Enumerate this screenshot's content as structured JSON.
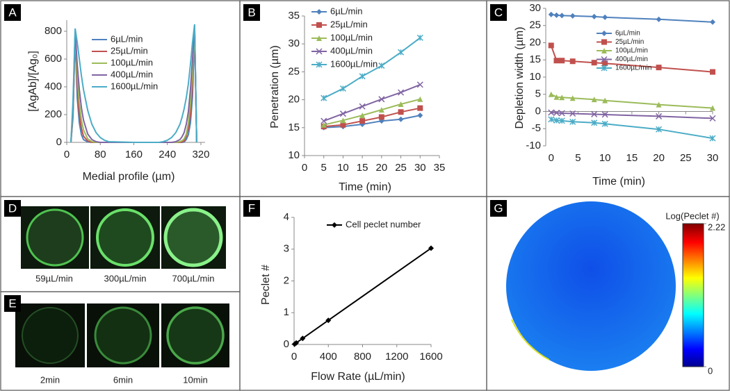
{
  "chart_data": [
    {
      "panel": "A",
      "type": "line",
      "x_label": "Medial profile (µm)",
      "y_label": "[AgAb]/[Ag₀]",
      "x": [
        10,
        15,
        20,
        25,
        30,
        35,
        40,
        50,
        60,
        70,
        80,
        90,
        100,
        160,
        220,
        230,
        240,
        250,
        260,
        270,
        275,
        280,
        285,
        290,
        295,
        300,
        305,
        310
      ],
      "xlim": [
        0,
        330
      ],
      "ylim": [
        0,
        880
      ],
      "xticks": [
        0,
        80,
        160,
        240,
        320
      ],
      "yticks": [
        0,
        200,
        400,
        600,
        800
      ],
      "series": [
        {
          "name": "6µL/min",
          "color": "#4f81bd",
          "marker": "none",
          "values": [
            0,
            180,
            770,
            320,
            140,
            55,
            20,
            3,
            0,
            0,
            0,
            0,
            0,
            0,
            0,
            0,
            0,
            0,
            0,
            0,
            0,
            3,
            20,
            55,
            140,
            330,
            800,
            0
          ]
        },
        {
          "name": "25µL/min",
          "color": "#c0504d",
          "marker": "none",
          "values": [
            0,
            200,
            780,
            400,
            200,
            100,
            45,
            10,
            0,
            0,
            0,
            0,
            0,
            0,
            0,
            0,
            0,
            0,
            0,
            0,
            3,
            10,
            45,
            100,
            200,
            420,
            810,
            0
          ]
        },
        {
          "name": "100µL/min",
          "color": "#9bbb59",
          "marker": "none",
          "values": [
            0,
            220,
            790,
            480,
            280,
            160,
            90,
            25,
            5,
            0,
            0,
            0,
            0,
            0,
            0,
            0,
            0,
            0,
            0,
            5,
            12,
            25,
            60,
            140,
            280,
            500,
            820,
            0
          ]
        },
        {
          "name": "400µL/min",
          "color": "#8064a2",
          "marker": "none",
          "values": [
            0,
            250,
            800,
            560,
            380,
            250,
            160,
            60,
            20,
            5,
            0,
            0,
            0,
            0,
            0,
            0,
            0,
            0,
            5,
            20,
            40,
            70,
            130,
            220,
            380,
            600,
            840,
            0
          ]
        },
        {
          "name": "1600µL/min",
          "color": "#4bacc6",
          "marker": "none",
          "values": [
            0,
            300,
            820,
            720,
            600,
            480,
            380,
            230,
            130,
            70,
            35,
            15,
            5,
            0,
            0,
            5,
            15,
            35,
            70,
            130,
            180,
            240,
            320,
            420,
            560,
            720,
            850,
            0
          ]
        }
      ]
    },
    {
      "panel": "B",
      "type": "line",
      "x_label": "Time (min)",
      "y_label": "Penetration (µm)",
      "x": [
        5,
        10,
        15,
        20,
        25,
        30
      ],
      "xlim": [
        0,
        35
      ],
      "ylim": [
        10,
        35
      ],
      "xticks": [
        0,
        5,
        10,
        15,
        20,
        25,
        30,
        35
      ],
      "yticks": [
        10,
        15,
        20,
        25,
        30,
        35
      ],
      "series": [
        {
          "name": "6µL/min",
          "color": "#4f81bd",
          "marker": "diamond",
          "values": [
            15,
            15.2,
            15.6,
            16.2,
            16.5,
            17.2
          ]
        },
        {
          "name": "25µL/min",
          "color": "#c0504d",
          "marker": "square",
          "values": [
            15.2,
            15.5,
            16.2,
            16.9,
            17.8,
            18.5
          ]
        },
        {
          "name": "100µL/min",
          "color": "#9bbb59",
          "marker": "triangle",
          "values": [
            15.5,
            16.3,
            17.2,
            18.2,
            19.2,
            20.1
          ]
        },
        {
          "name": "400µL/min",
          "color": "#8064a2",
          "marker": "x",
          "values": [
            16.2,
            17.5,
            18.8,
            20.1,
            21.3,
            22.7
          ]
        },
        {
          "name": "1600µL/min",
          "color": "#4bacc6",
          "marker": "star",
          "values": [
            20.3,
            22,
            24.2,
            26.1,
            28.5,
            31.1
          ]
        }
      ]
    },
    {
      "panel": "C",
      "type": "line",
      "x_label": "Time (min)",
      "y_label": "Depletion width (µm)",
      "x": [
        0,
        1,
        2,
        4,
        8,
        10,
        20,
        30
      ],
      "xlim": [
        -1,
        30
      ],
      "ylim": [
        -10,
        30
      ],
      "xticks": [
        0,
        5,
        10,
        15,
        20,
        25,
        30
      ],
      "yticks": [
        -10,
        -5,
        0,
        5,
        10,
        15,
        20,
        25,
        30
      ],
      "series": [
        {
          "name": "6µL/min",
          "color": "#4f81bd",
          "marker": "diamond",
          "values": [
            28.2,
            28,
            27.9,
            27.8,
            27.6,
            27.4,
            26.8,
            26
          ]
        },
        {
          "name": "25µL/min",
          "color": "#c0504d",
          "marker": "square",
          "values": [
            19.2,
            14.8,
            14.8,
            14.6,
            14.2,
            14,
            12.8,
            11.5
          ]
        },
        {
          "name": "100µL/min",
          "color": "#9bbb59",
          "marker": "triangle",
          "values": [
            5,
            4.2,
            4.1,
            3.9,
            3.5,
            3.2,
            2,
            1
          ]
        },
        {
          "name": "400µL/min",
          "color": "#8064a2",
          "marker": "x",
          "values": [
            -0.3,
            -0.4,
            -0.5,
            -0.6,
            -0.8,
            -0.9,
            -1.4,
            -2
          ]
        },
        {
          "name": "1600µL/min",
          "color": "#4bacc6",
          "marker": "star",
          "values": [
            -2.3,
            -2.6,
            -2.7,
            -3,
            -3.3,
            -3.6,
            -5.2,
            -7.8
          ]
        }
      ]
    },
    {
      "panel": "F",
      "type": "line",
      "x_label": "Flow Rate (µL/min)",
      "y_label": "Peclet #",
      "x": [
        6,
        25,
        100,
        400,
        1600
      ],
      "xlim": [
        0,
        1600
      ],
      "ylim": [
        0,
        4
      ],
      "xticks": [
        0,
        400,
        800,
        1200,
        1600
      ],
      "yticks": [
        0,
        1,
        2,
        3,
        4
      ],
      "series": [
        {
          "name": "Cell peclet number",
          "color": "#000000",
          "marker": "diamond",
          "values": [
            0.01,
            0.05,
            0.19,
            0.76,
            3.03
          ]
        }
      ]
    }
  ],
  "images": [
    {
      "panel": "D",
      "captions": [
        "59µL/min",
        "300µL/min",
        "700µL/min"
      ]
    },
    {
      "panel": "E",
      "captions": [
        "2min",
        "6min",
        "10min"
      ]
    },
    {
      "panel": "G",
      "colorbar": {
        "label": "Log(Peclet #)",
        "ticks": [
          0,
          2.22
        ]
      }
    }
  ]
}
